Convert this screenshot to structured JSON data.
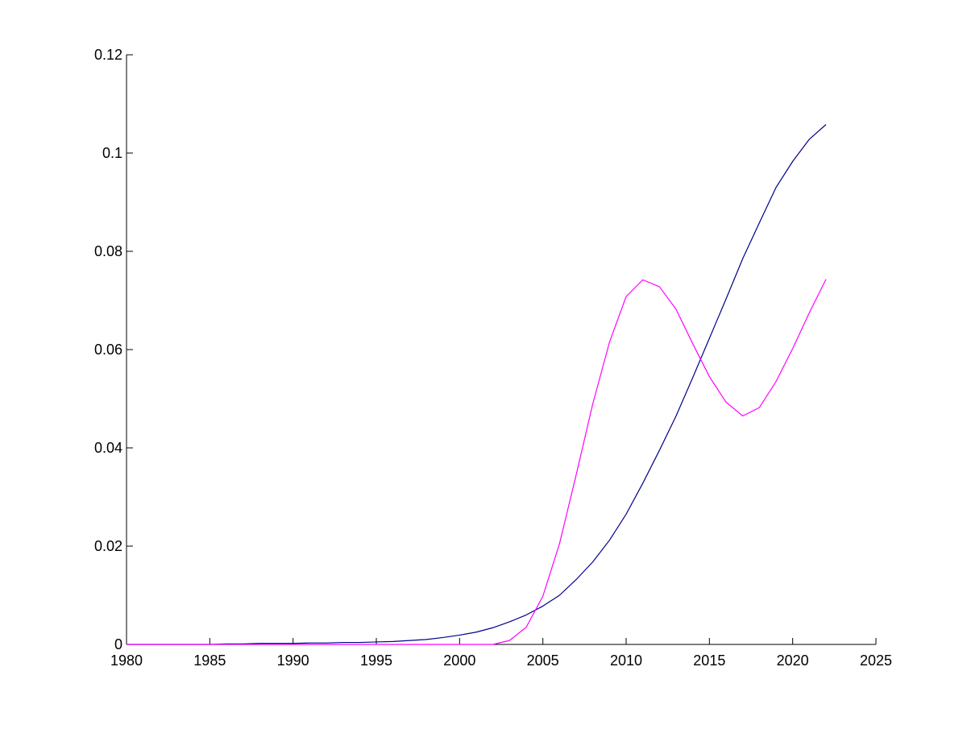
{
  "chart_data": {
    "type": "line",
    "title": "",
    "xlabel": "",
    "ylabel": "",
    "xlim": [
      1980,
      2025
    ],
    "ylim": [
      0,
      0.12
    ],
    "xticks": [
      1980,
      1985,
      1990,
      1995,
      2000,
      2005,
      2010,
      2015,
      2020,
      2025
    ],
    "xtick_labels": [
      "1980",
      "1985",
      "1990",
      "1995",
      "2000",
      "2005",
      "2010",
      "2015",
      "2020",
      "2025"
    ],
    "yticks": [
      0,
      0.02,
      0.04,
      0.06,
      0.08,
      0.1,
      0.12
    ],
    "ytick_labels": [
      "0",
      "0.02",
      "0.04",
      "0.06",
      "0.08",
      "0.1",
      "0.12"
    ],
    "grid": false,
    "legend": "none",
    "x": [
      1980,
      1981,
      1982,
      1983,
      1984,
      1985,
      1986,
      1987,
      1988,
      1989,
      1990,
      1991,
      1992,
      1993,
      1994,
      1995,
      1996,
      1997,
      1998,
      1999,
      2000,
      2001,
      2002,
      2003,
      2004,
      2005,
      2006,
      2007,
      2008,
      2009,
      2010,
      2011,
      2012,
      2013,
      2014,
      2015,
      2016,
      2017,
      2018,
      2019,
      2020,
      2021,
      2022
    ],
    "series": [
      {
        "color": "#00008b",
        "values": [
          0,
          0,
          0,
          0,
          0,
          0,
          0.0001,
          0.0001,
          0.0002,
          0.0002,
          0.0002,
          0.0003,
          0.0003,
          0.0004,
          0.0004,
          0.0005,
          0.0006,
          0.0008,
          0.001,
          0.0014,
          0.0019,
          0.0025,
          0.0034,
          0.0046,
          0.006,
          0.0078,
          0.01,
          0.0132,
          0.0168,
          0.0212,
          0.0265,
          0.0328,
          0.0395,
          0.0465,
          0.0543,
          0.0623,
          0.0703,
          0.0785,
          0.0858,
          0.093,
          0.0983,
          0.1028,
          0.1058
        ]
      },
      {
        "color": "#ff00ff",
        "values": [
          0,
          0,
          0,
          0,
          0,
          0,
          0,
          0,
          0,
          0,
          0,
          0,
          0,
          0,
          0,
          0,
          0,
          0,
          0,
          0,
          0,
          0,
          0,
          0.0008,
          0.0035,
          0.0098,
          0.0205,
          0.0345,
          0.049,
          0.0615,
          0.0708,
          0.0742,
          0.0728,
          0.0682,
          0.0612,
          0.0545,
          0.0493,
          0.0465,
          0.0482,
          0.0535,
          0.0602,
          0.0675,
          0.0743
        ]
      }
    ]
  }
}
